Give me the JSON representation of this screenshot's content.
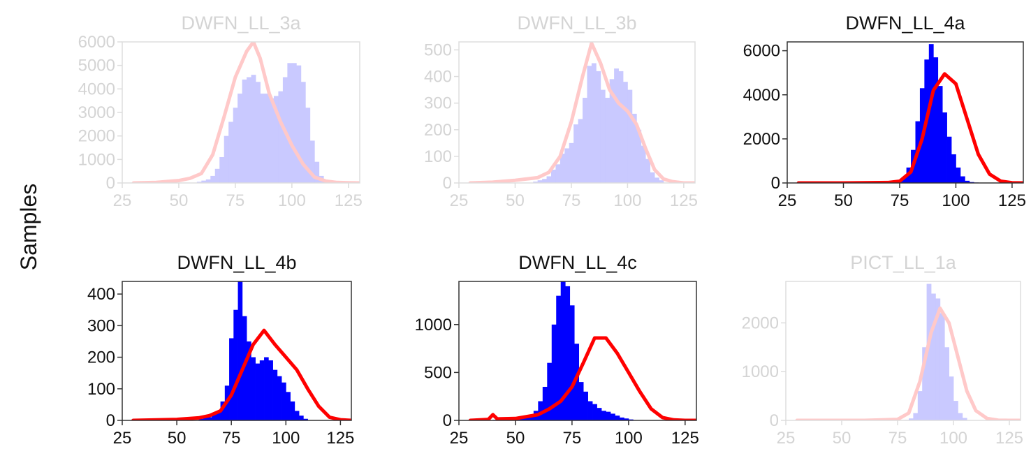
{
  "figure": {
    "ylabel": "Samples"
  },
  "chart_data": [
    {
      "type": "bar",
      "title": "DWFN_LL_3a",
      "faded": true,
      "xlim": [
        25,
        130
      ],
      "ylim": [
        0,
        6000
      ],
      "xticks": [
        25,
        50,
        75,
        100,
        125
      ],
      "yticks": [
        0,
        1000,
        2000,
        3000,
        4000,
        5000,
        6000
      ],
      "bins": {
        "x0": 30,
        "width": 2,
        "counts": [
          0,
          0,
          0,
          0,
          0,
          0,
          0,
          0,
          0,
          0,
          0,
          0,
          0,
          0,
          50,
          100,
          150,
          300,
          600,
          1100,
          2000,
          2600,
          3200,
          3800,
          4400,
          4500,
          4600,
          4300,
          3800,
          3800,
          3600,
          3700,
          3900,
          4500,
          5100,
          5100,
          5000,
          4300,
          3200,
          1800,
          900,
          300,
          100,
          50,
          0,
          0,
          0,
          0,
          0,
          0
        ]
      },
      "curve": {
        "x": [
          30,
          40,
          50,
          55,
          60,
          65,
          70,
          75,
          80,
          83,
          86,
          90,
          95,
          100,
          105,
          110,
          115,
          120,
          125,
          130
        ],
        "y": [
          0,
          20,
          100,
          200,
          400,
          1200,
          2800,
          4500,
          5600,
          6000,
          5300,
          3800,
          2600,
          1600,
          800,
          250,
          80,
          20,
          5,
          0
        ]
      },
      "colors": {
        "bar": "#c9c9ff",
        "curve": "#ffc9c9",
        "axis": "#dddddd",
        "text": "#d4d4d4"
      }
    },
    {
      "type": "bar",
      "title": "DWFN_LL_3b",
      "faded": true,
      "xlim": [
        25,
        130
      ],
      "ylim": [
        0,
        530
      ],
      "xticks": [
        25,
        50,
        75,
        100,
        125
      ],
      "yticks": [
        0,
        100,
        200,
        300,
        400,
        500
      ],
      "bins": {
        "x0": 30,
        "width": 2,
        "counts": [
          0,
          0,
          0,
          0,
          0,
          0,
          0,
          0,
          0,
          0,
          0,
          0,
          0,
          0,
          5,
          10,
          15,
          25,
          50,
          70,
          110,
          130,
          150,
          220,
          240,
          320,
          440,
          450,
          420,
          350,
          320,
          390,
          430,
          420,
          380,
          350,
          260,
          200,
          140,
          90,
          40,
          20,
          10,
          0,
          0,
          0,
          0,
          0,
          0,
          0
        ]
      },
      "curve": {
        "x": [
          30,
          40,
          50,
          60,
          65,
          70,
          75,
          80,
          84,
          88,
          92,
          96,
          100,
          104,
          108,
          112,
          116,
          120,
          125,
          130
        ],
        "y": [
          0,
          3,
          10,
          20,
          40,
          100,
          230,
          400,
          525,
          450,
          350,
          300,
          270,
          220,
          130,
          50,
          15,
          5,
          0,
          0
        ]
      },
      "colors": {
        "bar": "#c9c9ff",
        "curve": "#ffc9c9",
        "axis": "#dddddd",
        "text": "#d4d4d4"
      }
    },
    {
      "type": "bar",
      "title": "DWFN_LL_4a",
      "faded": false,
      "xlim": [
        25,
        130
      ],
      "ylim": [
        0,
        6400
      ],
      "xticks": [
        25,
        50,
        75,
        100,
        125
      ],
      "yticks": [
        0,
        2000,
        4000,
        6000
      ],
      "bins": {
        "x0": 30,
        "width": 2,
        "counts": [
          0,
          0,
          0,
          0,
          0,
          0,
          0,
          0,
          0,
          0,
          0,
          0,
          0,
          0,
          0,
          0,
          0,
          0,
          0,
          0,
          0,
          0,
          80,
          250,
          700,
          1500,
          2800,
          4300,
          5600,
          6300,
          5700,
          4400,
          3200,
          2100,
          1300,
          700,
          300,
          100,
          40,
          20,
          0,
          0,
          0,
          0,
          0,
          0,
          0,
          0,
          0,
          0
        ]
      },
      "curve": {
        "x": [
          30,
          50,
          70,
          75,
          80,
          85,
          90,
          95,
          100,
          105,
          110,
          115,
          120,
          125,
          130
        ],
        "y": [
          0,
          0,
          20,
          80,
          500,
          2000,
          4200,
          4950,
          4500,
          2900,
          1300,
          400,
          80,
          10,
          0
        ]
      },
      "colors": {
        "bar": "#0000ff",
        "curve": "#ff0000",
        "axis": "#333333",
        "text": "#111111"
      }
    },
    {
      "type": "bar",
      "title": "DWFN_LL_4b",
      "faded": false,
      "xlim": [
        25,
        130
      ],
      "ylim": [
        0,
        440
      ],
      "xticks": [
        25,
        50,
        75,
        100,
        125
      ],
      "yticks": [
        0,
        100,
        200,
        300,
        400
      ],
      "bins": {
        "x0": 30,
        "width": 2,
        "counts": [
          0,
          0,
          0,
          0,
          0,
          0,
          0,
          0,
          0,
          0,
          0,
          0,
          0,
          0,
          0,
          5,
          10,
          10,
          20,
          30,
          60,
          110,
          260,
          350,
          440,
          330,
          250,
          200,
          180,
          190,
          200,
          190,
          160,
          140,
          120,
          90,
          60,
          30,
          15,
          5,
          0,
          0,
          0,
          0,
          0,
          0,
          0,
          0,
          0,
          0
        ]
      },
      "curve": {
        "x": [
          30,
          50,
          60,
          65,
          70,
          75,
          80,
          85,
          90,
          95,
          100,
          105,
          110,
          115,
          120,
          125,
          130
        ],
        "y": [
          0,
          3,
          8,
          15,
          30,
          80,
          160,
          240,
          285,
          240,
          200,
          160,
          100,
          45,
          10,
          2,
          0
        ]
      },
      "colors": {
        "bar": "#0000ff",
        "curve": "#ff0000",
        "axis": "#333333",
        "text": "#111111"
      }
    },
    {
      "type": "bar",
      "title": "DWFN_LL_4c",
      "faded": false,
      "xlim": [
        25,
        130
      ],
      "ylim": [
        0,
        1450
      ],
      "xticks": [
        25,
        50,
        75,
        100,
        125
      ],
      "yticks": [
        0,
        500,
        1000
      ],
      "bins": {
        "x0": 30,
        "width": 2,
        "counts": [
          0,
          0,
          0,
          0,
          0,
          5,
          0,
          0,
          0,
          0,
          10,
          20,
          30,
          50,
          100,
          200,
          350,
          600,
          1000,
          1300,
          1450,
          1400,
          1200,
          800,
          400,
          300,
          200,
          170,
          130,
          100,
          90,
          70,
          50,
          30,
          20,
          10,
          0,
          0,
          0,
          0,
          0,
          0,
          0,
          0,
          0,
          0,
          0,
          0,
          0,
          0
        ]
      },
      "curve": {
        "x": [
          30,
          38,
          40,
          42,
          50,
          60,
          65,
          70,
          75,
          80,
          85,
          90,
          95,
          100,
          105,
          110,
          115,
          120,
          125,
          130
        ],
        "y": [
          0,
          10,
          60,
          15,
          20,
          60,
          120,
          200,
          350,
          600,
          860,
          860,
          700,
          500,
          300,
          120,
          30,
          5,
          0,
          0
        ]
      },
      "colors": {
        "bar": "#0000ff",
        "curve": "#ff0000",
        "axis": "#333333",
        "text": "#111111"
      }
    },
    {
      "type": "bar",
      "title": "PICT_LL_1a",
      "faded": true,
      "xlim": [
        25,
        130
      ],
      "ylim": [
        0,
        2850
      ],
      "xticks": [
        25,
        50,
        75,
        100,
        125
      ],
      "yticks": [
        0,
        1000,
        2000
      ],
      "bins": {
        "x0": 30,
        "width": 2,
        "counts": [
          0,
          0,
          0,
          0,
          0,
          0,
          0,
          0,
          0,
          0,
          0,
          0,
          0,
          0,
          0,
          0,
          0,
          0,
          0,
          0,
          0,
          0,
          0,
          0,
          10,
          40,
          150,
          600,
          1500,
          2800,
          2600,
          2500,
          2200,
          1500,
          900,
          400,
          150,
          50,
          0,
          0,
          0,
          0,
          0,
          0,
          0,
          0,
          0,
          0,
          0,
          0
        ]
      },
      "curve": {
        "x": [
          30,
          60,
          75,
          80,
          85,
          90,
          94,
          98,
          102,
          106,
          110,
          115,
          120,
          125,
          130
        ],
        "y": [
          0,
          0,
          20,
          150,
          800,
          1800,
          2300,
          2000,
          1300,
          600,
          200,
          40,
          5,
          0,
          0
        ]
      },
      "colors": {
        "bar": "#c9c9ff",
        "curve": "#ffc9c9",
        "axis": "#dddddd",
        "text": "#d4d4d4"
      }
    }
  ]
}
